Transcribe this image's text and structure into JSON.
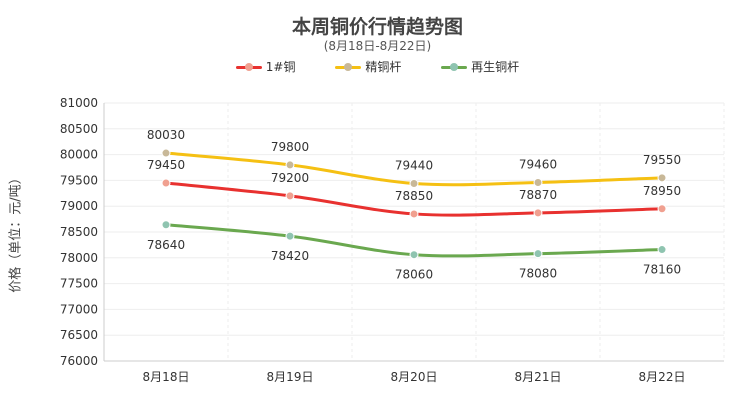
{
  "chart_data": {
    "type": "line",
    "title": "本周铜价行情趋势图",
    "subtitle": "(8月18日-8月22日)",
    "ylabel": "价格（单位：元/吨）",
    "xlabel": "",
    "categories": [
      "8月18日",
      "8月19日",
      "8月20日",
      "8月21日",
      "8月22日"
    ],
    "ylim": [
      76000,
      81000
    ],
    "yticks": [
      "76000",
      "76500",
      "77000",
      "77500",
      "78000",
      "78500",
      "79000",
      "79500",
      "80000",
      "80500",
      "81000"
    ],
    "grid": true,
    "legend_position": "top-center",
    "series": [
      {
        "name": "1#铜",
        "color": "#e8312f",
        "marker_color": "#f0a090",
        "values": [
          79450,
          79200,
          78850,
          78870,
          78950
        ],
        "label_pos": "above"
      },
      {
        "name": "精铜杆",
        "color": "#f5c013",
        "marker_color": "#c8b898",
        "values": [
          80030,
          79800,
          79440,
          79460,
          79550
        ],
        "label_pos": "above"
      },
      {
        "name": "再生铜杆",
        "color": "#6aa84f",
        "marker_color": "#8fc4b0",
        "values": [
          78640,
          78420,
          78060,
          78080,
          78160
        ],
        "label_pos": "below"
      }
    ],
    "data_labels": [
      {
        "series": 1,
        "index": 0,
        "text": "80030"
      },
      {
        "series": 1,
        "index": 1,
        "text": "79800"
      },
      {
        "series": 1,
        "index": 2,
        "text": "79440"
      },
      {
        "series": 1,
        "index": 3,
        "text": "79460"
      },
      {
        "series": 1,
        "index": 4,
        "text": "79550"
      },
      {
        "series": 0,
        "index": 0,
        "text": "79450"
      },
      {
        "series": 0,
        "index": 1,
        "text": "79200"
      },
      {
        "series": 0,
        "index": 2,
        "text": "78850"
      },
      {
        "series": 0,
        "index": 3,
        "text": "78870"
      },
      {
        "series": 0,
        "index": 4,
        "text": "78950"
      },
      {
        "series": 2,
        "index": 0,
        "text": "78640"
      },
      {
        "series": 2,
        "index": 1,
        "text": "78420"
      },
      {
        "series": 2,
        "index": 2,
        "text": "78060"
      },
      {
        "series": 2,
        "index": 3,
        "text": "78080"
      },
      {
        "series": 2,
        "index": 4,
        "text": "78160"
      }
    ]
  }
}
